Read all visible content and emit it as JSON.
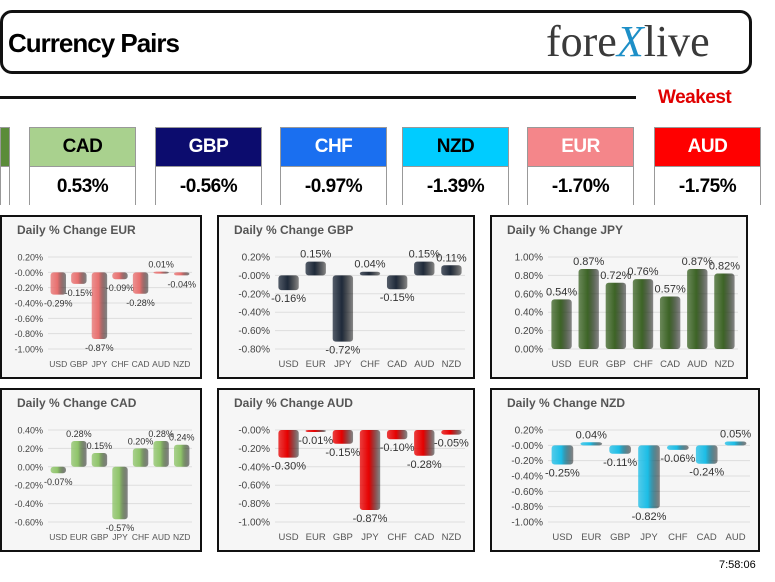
{
  "header": {
    "title": "Currency Pairs",
    "logo_parts": [
      "fore",
      "X",
      "live"
    ],
    "weakest_label": "Weakest"
  },
  "currencies": [
    {
      "code": "",
      "value": "",
      "bg": "#5b8c3a",
      "fg": "#ffffff"
    },
    {
      "code": "CAD",
      "value": "0.53%",
      "bg": "#a9d18e",
      "fg": "#000000"
    },
    {
      "code": "GBP",
      "value": "-0.56%",
      "bg": "#0c0c6e",
      "fg": "#ffffff"
    },
    {
      "code": "CHF",
      "value": "-0.97%",
      "bg": "#1a6ff0",
      "fg": "#ffffff"
    },
    {
      "code": "NZD",
      "value": "-1.39%",
      "bg": "#00ccff",
      "fg": "#000000"
    },
    {
      "code": "EUR",
      "value": "-1.70%",
      "bg": "#f4868a",
      "fg": "#ffffff"
    },
    {
      "code": "AUD",
      "value": "-1.75%",
      "bg": "#ff0000",
      "fg": "#ffffff"
    }
  ],
  "timestamp": "7:58:06",
  "chart_data": [
    {
      "id": "eur",
      "type": "bar",
      "title": "Daily % Change EUR",
      "categories": [
        "USD",
        "GBP",
        "JPY",
        "CHF",
        "CAD",
        "AUD",
        "NZD"
      ],
      "values": [
        -0.29,
        -0.15,
        -0.87,
        -0.09,
        -0.28,
        0.01,
        -0.04
      ],
      "ylim": [
        -1.0,
        0.2
      ],
      "color": "#e8706f",
      "grid": true
    },
    {
      "id": "gbp",
      "type": "bar",
      "title": "Daily % Change GBP",
      "categories": [
        "USD",
        "EUR",
        "JPY",
        "CHF",
        "CAD",
        "AUD",
        "NZD"
      ],
      "values": [
        -0.16,
        0.15,
        -0.72,
        0.04,
        -0.15,
        0.15,
        0.11
      ],
      "ylim": [
        -0.8,
        0.2
      ],
      "color": "#1f2a3a",
      "grid": true
    },
    {
      "id": "jpy",
      "type": "bar",
      "title": "Daily % Change JPY",
      "categories": [
        "USD",
        "EUR",
        "GBP",
        "CHF",
        "CAD",
        "AUD",
        "NZD"
      ],
      "values": [
        0.54,
        0.87,
        0.72,
        0.76,
        0.57,
        0.87,
        0.82
      ],
      "ylim": [
        0.0,
        1.0
      ],
      "color": "#3d6426",
      "grid": true
    },
    {
      "id": "cad",
      "type": "bar",
      "title": "Daily % Change CAD",
      "categories": [
        "USD",
        "EUR",
        "GBP",
        "JPY",
        "CHF",
        "AUD",
        "NZD"
      ],
      "values": [
        -0.07,
        0.28,
        0.15,
        -0.57,
        0.2,
        0.28,
        0.24
      ],
      "ylim": [
        -0.6,
        0.4
      ],
      "color": "#8fc46a",
      "grid": true
    },
    {
      "id": "aud",
      "type": "bar",
      "title": "Daily % Change AUD",
      "categories": [
        "USD",
        "EUR",
        "GBP",
        "JPY",
        "CHF",
        "CAD",
        "NZD"
      ],
      "values": [
        -0.3,
        -0.01,
        -0.15,
        -0.87,
        -0.1,
        -0.28,
        -0.05
      ],
      "ylim": [
        -1.0,
        0.0
      ],
      "color": "#e60000",
      "grid": true
    },
    {
      "id": "nzd",
      "type": "bar",
      "title": "Daily % Change NZD",
      "categories": [
        "USD",
        "EUR",
        "GBP",
        "JPY",
        "CHF",
        "CAD",
        "AUD"
      ],
      "values": [
        -0.25,
        0.04,
        -0.11,
        -0.82,
        -0.06,
        -0.24,
        0.05
      ],
      "ylim": [
        -1.0,
        0.2
      ],
      "color": "#1cbde6",
      "grid": true
    }
  ]
}
